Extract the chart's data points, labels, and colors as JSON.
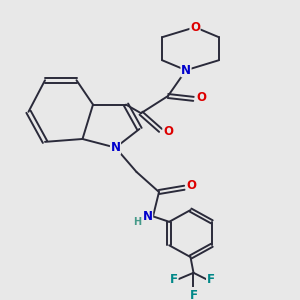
{
  "bg_color": "#e8e8e8",
  "bond_color": "#2a2a3a",
  "bond_width": 1.4,
  "atom_colors": {
    "O": "#dd0000",
    "N": "#0000cc",
    "F": "#008888",
    "H": "#449988"
  },
  "font_size_atoms": 8.5,
  "font_size_small": 7.0,
  "xlim": [
    0,
    10
  ],
  "ylim": [
    0,
    10
  ]
}
